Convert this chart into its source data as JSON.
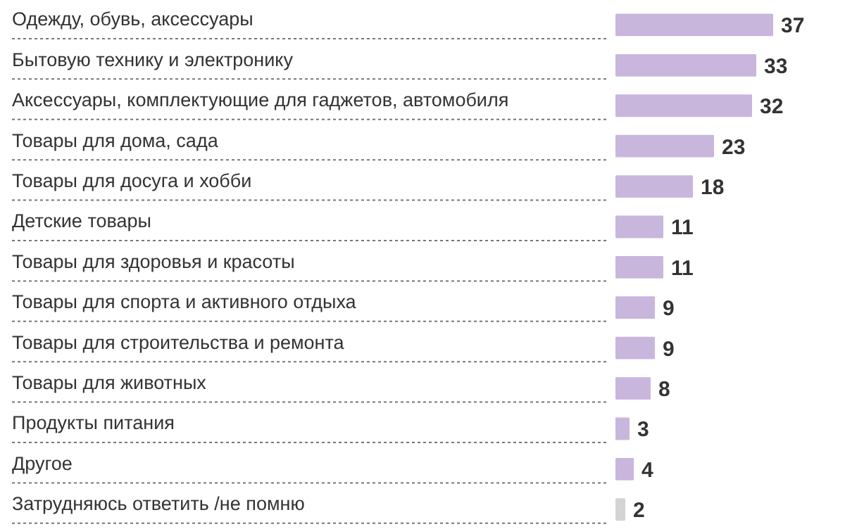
{
  "chart_data": {
    "type": "bar",
    "orientation": "horizontal",
    "data_labels": true,
    "grid": "y",
    "categories": [
      "Одежду, обувь, аксессуары",
      "Бытовую технику и электронику",
      "Аксессуары, комплектующие для гаджетов, автомобиля",
      "Товары для дома, сада",
      "Товары для досуга и хобби",
      "Детские товары",
      "Товары для здоровья и красоты",
      "Товары для спорта и активного отдыха",
      "Товары для строительства и ремонта",
      "Товары для животных",
      "Продукты питания",
      "Другое",
      "Затрудняюсь ответить /не помню"
    ],
    "values": [
      37,
      33,
      32,
      23,
      18,
      11,
      11,
      9,
      9,
      8,
      3,
      4,
      2
    ],
    "colors": [
      "#c9b6dd",
      "#c9b6dd",
      "#c9b6dd",
      "#c9b6dd",
      "#c9b6dd",
      "#c9b6dd",
      "#c9b6dd",
      "#c9b6dd",
      "#c9b6dd",
      "#c9b6dd",
      "#c9b6dd",
      "#c9b6dd",
      "#d4d4d4"
    ]
  }
}
